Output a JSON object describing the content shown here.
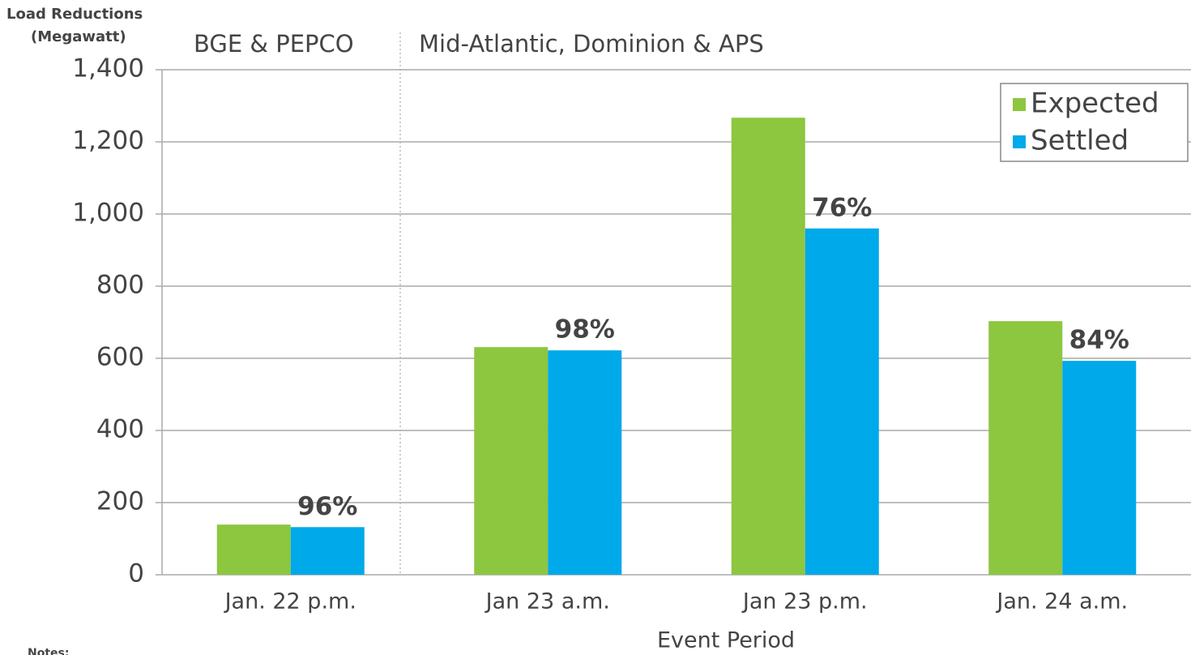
{
  "chart_data": {
    "type": "bar",
    "y_label_lines": [
      "Load Reductions",
      "(Megawatt)"
    ],
    "region_labels": [
      "BGE & PEPCO",
      "Mid-Atlantic, Dominion & APS"
    ],
    "x_label": "Event Period",
    "notes": "Notes:",
    "categories": [
      "Jan. 22 p.m.",
      "Jan 23 a.m.",
      "Jan 23 p.m.",
      "Jan. 24 a.m."
    ],
    "series": [
      {
        "name": "Expected",
        "color": "#8dc63f",
        "values": [
          139,
          631,
          1267,
          703
        ]
      },
      {
        "name": "Settled",
        "color": "#00a9e9",
        "values": [
          132,
          622,
          960,
          593
        ]
      }
    ],
    "annotations": [
      "96%",
      "98%",
      "76%",
      "84%"
    ],
    "ylim": [
      0,
      1400
    ],
    "yticks": [
      0,
      200,
      400,
      600,
      800,
      {
        "value": 1000,
        "label": "1,000"
      },
      {
        "value": 1200,
        "label": "1,200"
      },
      {
        "value": 1400,
        "label": "1,400"
      }
    ],
    "grid": true,
    "legend": "top-right"
  }
}
